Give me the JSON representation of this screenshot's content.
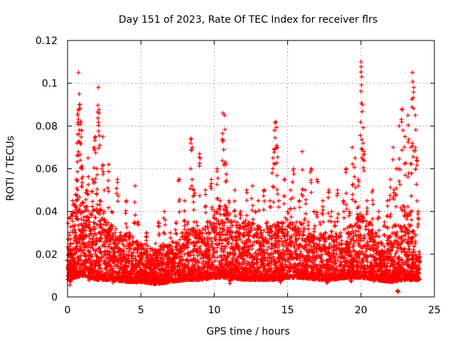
{
  "chart_data": {
    "type": "scatter",
    "title": "Day 151 of 2023, Rate Of TEC Index for receiver flrs",
    "xlabel": "GPS time / hours",
    "ylabel": "ROTI / TECUs",
    "xlim": [
      0,
      25
    ],
    "ylim": [
      0,
      0.12
    ],
    "x_ticks": [
      "0",
      "5",
      "10",
      "15",
      "20",
      "25"
    ],
    "y_ticks": [
      "0",
      "0.02",
      "0.04",
      "0.06",
      "0.08",
      "0.1",
      "0.12"
    ],
    "grid": true,
    "marker": "+",
    "series": [
      {
        "color": "#ff0000",
        "points": [
          [
            0.1,
            0.015
          ],
          [
            0.2,
            0.022
          ],
          [
            0.3,
            0.012
          ],
          [
            0.35,
            0.045
          ],
          [
            0.4,
            0.018
          ],
          [
            0.5,
            0.03
          ],
          [
            0.6,
            0.055
          ],
          [
            0.65,
            0.072
          ],
          [
            0.7,
            0.085
          ],
          [
            0.75,
            0.105
          ],
          [
            0.8,
            0.095
          ],
          [
            0.85,
            0.09
          ],
          [
            0.9,
            0.082
          ],
          [
            0.95,
            0.078
          ],
          [
            1.0,
            0.06
          ],
          [
            1.1,
            0.04
          ],
          [
            1.2,
            0.025
          ],
          [
            1.3,
            0.05
          ],
          [
            1.4,
            0.065
          ],
          [
            1.5,
            0.035
          ],
          [
            1.6,
            0.02
          ],
          [
            1.7,
            0.055
          ],
          [
            1.8,
            0.07
          ],
          [
            1.9,
            0.075
          ],
          [
            2.0,
            0.06
          ],
          [
            2.1,
            0.098
          ],
          [
            2.15,
            0.086
          ],
          [
            2.2,
            0.045
          ],
          [
            2.3,
            0.03
          ],
          [
            2.4,
            0.075
          ],
          [
            2.5,
            0.05
          ],
          [
            2.6,
            0.035
          ],
          [
            2.8,
            0.062
          ],
          [
            3.0,
            0.04
          ],
          [
            3.2,
            0.025
          ],
          [
            3.4,
            0.055
          ],
          [
            3.6,
            0.03
          ],
          [
            3.8,
            0.02
          ],
          [
            4.0,
            0.045
          ],
          [
            4.2,
            0.03
          ],
          [
            4.4,
            0.018
          ],
          [
            4.6,
            0.052
          ],
          [
            4.8,
            0.035
          ],
          [
            5.0,
            0.025
          ],
          [
            5.2,
            0.015
          ],
          [
            5.4,
            0.03
          ],
          [
            5.6,
            0.02
          ],
          [
            5.8,
            0.012
          ],
          [
            6.0,
            0.025
          ],
          [
            6.2,
            0.035
          ],
          [
            6.4,
            0.02
          ],
          [
            6.6,
            0.04
          ],
          [
            6.8,
            0.015
          ],
          [
            7.0,
            0.03
          ],
          [
            7.2,
            0.02
          ],
          [
            7.4,
            0.035
          ],
          [
            7.6,
            0.055
          ],
          [
            7.8,
            0.03
          ],
          [
            8.0,
            0.045
          ],
          [
            8.2,
            0.035
          ],
          [
            8.4,
            0.074
          ],
          [
            8.5,
            0.07
          ],
          [
            8.6,
            0.05
          ],
          [
            8.8,
            0.035
          ],
          [
            9.0,
            0.067
          ],
          [
            9.2,
            0.03
          ],
          [
            9.4,
            0.05
          ],
          [
            9.6,
            0.025
          ],
          [
            9.8,
            0.055
          ],
          [
            10.0,
            0.04
          ],
          [
            10.2,
            0.06
          ],
          [
            10.4,
            0.045
          ],
          [
            10.6,
            0.086
          ],
          [
            10.7,
            0.085
          ],
          [
            10.8,
            0.062
          ],
          [
            11.0,
            0.045
          ],
          [
            11.2,
            0.035
          ],
          [
            11.4,
            0.05
          ],
          [
            11.6,
            0.03
          ],
          [
            11.8,
            0.04
          ],
          [
            12.0,
            0.035
          ],
          [
            12.2,
            0.05
          ],
          [
            12.4,
            0.03
          ],
          [
            12.6,
            0.052
          ],
          [
            12.8,
            0.04
          ],
          [
            13.0,
            0.045
          ],
          [
            13.2,
            0.03
          ],
          [
            13.4,
            0.05
          ],
          [
            13.6,
            0.035
          ],
          [
            13.8,
            0.045
          ],
          [
            14.0,
            0.065
          ],
          [
            14.1,
            0.078
          ],
          [
            14.2,
            0.082
          ],
          [
            14.3,
            0.07
          ],
          [
            14.4,
            0.045
          ],
          [
            14.6,
            0.035
          ],
          [
            14.8,
            0.055
          ],
          [
            15.0,
            0.04
          ],
          [
            15.2,
            0.05
          ],
          [
            15.4,
            0.06
          ],
          [
            15.6,
            0.035
          ],
          [
            15.8,
            0.045
          ],
          [
            16.0,
            0.068
          ],
          [
            16.2,
            0.05
          ],
          [
            16.4,
            0.035
          ],
          [
            16.6,
            0.06
          ],
          [
            16.8,
            0.04
          ],
          [
            17.0,
            0.055
          ],
          [
            17.2,
            0.035
          ],
          [
            17.4,
            0.045
          ],
          [
            17.6,
            0.03
          ],
          [
            17.8,
            0.05
          ],
          [
            18.0,
            0.04
          ],
          [
            18.2,
            0.035
          ],
          [
            18.4,
            0.05
          ],
          [
            18.6,
            0.03
          ],
          [
            18.8,
            0.045
          ],
          [
            19.0,
            0.06
          ],
          [
            19.2,
            0.04
          ],
          [
            19.4,
            0.07
          ],
          [
            19.6,
            0.065
          ],
          [
            19.8,
            0.055
          ],
          [
            20.0,
            0.11
          ],
          [
            20.05,
            0.103
          ],
          [
            20.1,
            0.09
          ],
          [
            20.2,
            0.068
          ],
          [
            20.4,
            0.045
          ],
          [
            20.6,
            0.035
          ],
          [
            20.8,
            0.05
          ],
          [
            21.0,
            0.03
          ],
          [
            21.2,
            0.04
          ],
          [
            21.4,
            0.025
          ],
          [
            21.6,
            0.035
          ],
          [
            21.8,
            0.045
          ],
          [
            22.0,
            0.055
          ],
          [
            22.2,
            0.07
          ],
          [
            22.4,
            0.06
          ],
          [
            22.6,
            0.08
          ],
          [
            22.8,
            0.088
          ],
          [
            23.0,
            0.075
          ],
          [
            23.2,
            0.085
          ],
          [
            23.4,
            0.07
          ],
          [
            23.5,
            0.105
          ],
          [
            23.6,
            0.098
          ],
          [
            23.7,
            0.085
          ],
          [
            23.8,
            0.065
          ],
          [
            23.9,
            0.04
          ],
          [
            24.0,
            0.02
          ],
          [
            0.2,
            0.008
          ],
          [
            1.5,
            0.012
          ],
          [
            3.1,
            0.01
          ],
          [
            4.7,
            0.009
          ],
          [
            6.3,
            0.011
          ],
          [
            7.9,
            0.01
          ],
          [
            9.5,
            0.012
          ],
          [
            11.1,
            0.009
          ],
          [
            12.7,
            0.011
          ],
          [
            14.5,
            0.01
          ],
          [
            16.1,
            0.012
          ],
          [
            17.7,
            0.009
          ],
          [
            19.3,
            0.011
          ],
          [
            20.9,
            0.01
          ],
          [
            22.5,
            0.003
          ],
          [
            23.3,
            0.012
          ]
        ],
        "band": {
          "description_x_range": [
            0,
            24
          ],
          "baseline": [
            [
              0,
              0.01
            ],
            [
              1,
              0.012
            ],
            [
              2,
              0.01
            ],
            [
              3,
              0.01
            ],
            [
              4,
              0.009
            ],
            [
              5,
              0.009
            ],
            [
              6,
              0.008
            ],
            [
              7,
              0.009
            ],
            [
              8,
              0.01
            ],
            [
              9,
              0.01
            ],
            [
              10,
              0.011
            ],
            [
              11,
              0.011
            ],
            [
              12,
              0.01
            ],
            [
              13,
              0.01
            ],
            [
              14,
              0.01
            ],
            [
              15,
              0.011
            ],
            [
              16,
              0.011
            ],
            [
              17,
              0.01
            ],
            [
              18,
              0.01
            ],
            [
              19,
              0.011
            ],
            [
              20,
              0.011
            ],
            [
              21,
              0.01
            ],
            [
              22,
              0.009
            ],
            [
              23,
              0.01
            ],
            [
              24,
              0.01
            ]
          ],
          "upper": [
            [
              0,
              0.035
            ],
            [
              0.5,
              0.05
            ],
            [
              1,
              0.045
            ],
            [
              1.5,
              0.04
            ],
            [
              2,
              0.045
            ],
            [
              2.5,
              0.04
            ],
            [
              3,
              0.035
            ],
            [
              3.5,
              0.03
            ],
            [
              4,
              0.03
            ],
            [
              4.5,
              0.028
            ],
            [
              5,
              0.025
            ],
            [
              5.5,
              0.025
            ],
            [
              6,
              0.022
            ],
            [
              6.5,
              0.025
            ],
            [
              7,
              0.025
            ],
            [
              7.5,
              0.028
            ],
            [
              8,
              0.03
            ],
            [
              8.5,
              0.033
            ],
            [
              9,
              0.033
            ],
            [
              9.5,
              0.035
            ],
            [
              10,
              0.04
            ],
            [
              10.5,
              0.045
            ],
            [
              11,
              0.04
            ],
            [
              11.5,
              0.035
            ],
            [
              12,
              0.035
            ],
            [
              12.5,
              0.035
            ],
            [
              13,
              0.033
            ],
            [
              13.5,
              0.033
            ],
            [
              14,
              0.035
            ],
            [
              14.5,
              0.035
            ],
            [
              15,
              0.035
            ],
            [
              15.5,
              0.035
            ],
            [
              16,
              0.035
            ],
            [
              16.5,
              0.03
            ],
            [
              17,
              0.03
            ],
            [
              17.5,
              0.03
            ],
            [
              18,
              0.03
            ],
            [
              18.5,
              0.03
            ],
            [
              19,
              0.032
            ],
            [
              19.5,
              0.035
            ],
            [
              20,
              0.04
            ],
            [
              20.5,
              0.035
            ],
            [
              21,
              0.028
            ],
            [
              21.5,
              0.025
            ],
            [
              22,
              0.03
            ],
            [
              22.5,
              0.04
            ],
            [
              23,
              0.045
            ],
            [
              23.5,
              0.04
            ],
            [
              24,
              0.02
            ]
          ]
        }
      }
    ]
  }
}
